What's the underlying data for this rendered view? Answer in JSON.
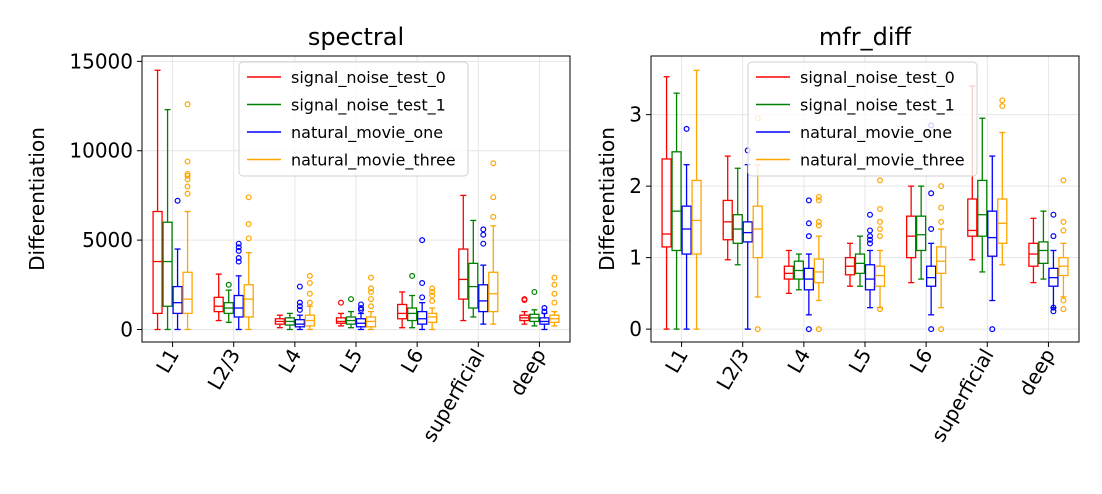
{
  "chart_data": [
    {
      "type": "box",
      "title": "spectral",
      "ylabel": "Differentiation",
      "xlabel": "",
      "ylim": [
        -700,
        15300
      ],
      "yticks": [
        0,
        5000,
        10000,
        15000
      ],
      "ytick_labels": [
        "0",
        "5000",
        "10000",
        "15000"
      ],
      "grid": true,
      "legend_position": "top-center",
      "categories": [
        "L1",
        "L2/3",
        "L4",
        "L5",
        "L6",
        "superficial",
        "deep"
      ],
      "series": [
        {
          "name": "signal_noise_test_0",
          "color": "#ff0000",
          "boxes": [
            {
              "whislo": 0,
              "q1": 900,
              "med": 3800,
              "q3": 6600,
              "whishi": 14500,
              "fliers": []
            },
            {
              "whislo": 500,
              "q1": 1000,
              "med": 1300,
              "q3": 1800,
              "whishi": 3100,
              "fliers": []
            },
            {
              "whislo": 100,
              "q1": 300,
              "med": 450,
              "q3": 600,
              "whishi": 800,
              "fliers": []
            },
            {
              "whislo": 200,
              "q1": 350,
              "med": 450,
              "q3": 650,
              "whishi": 900,
              "fliers": [
                1500
              ]
            },
            {
              "whislo": 100,
              "q1": 600,
              "med": 900,
              "q3": 1400,
              "whishi": 2100,
              "fliers": []
            },
            {
              "whislo": 500,
              "q1": 1700,
              "med": 2800,
              "q3": 4500,
              "whishi": 7500,
              "fliers": []
            },
            {
              "whislo": 300,
              "q1": 500,
              "med": 650,
              "q3": 800,
              "whishi": 1000,
              "fliers": [
                1650,
                1700
              ]
            }
          ]
        },
        {
          "name": "signal_noise_test_1",
          "color": "#008000",
          "boxes": [
            {
              "whislo": 0,
              "q1": 1300,
              "med": 3800,
              "q3": 6000,
              "whishi": 12300,
              "fliers": []
            },
            {
              "whislo": 400,
              "q1": 900,
              "med": 1200,
              "q3": 1500,
              "whishi": 2200,
              "fliers": [
                2500
              ]
            },
            {
              "whislo": 0,
              "q1": 250,
              "med": 450,
              "q3": 650,
              "whishi": 900,
              "fliers": []
            },
            {
              "whislo": 100,
              "q1": 300,
              "med": 500,
              "q3": 700,
              "whishi": 1000,
              "fliers": [
                1700
              ]
            },
            {
              "whislo": 100,
              "q1": 500,
              "med": 900,
              "q3": 1200,
              "whishi": 1900,
              "fliers": [
                3000
              ]
            },
            {
              "whislo": 700,
              "q1": 1200,
              "med": 2400,
              "q3": 3700,
              "whishi": 6100,
              "fliers": []
            },
            {
              "whislo": 200,
              "q1": 450,
              "med": 650,
              "q3": 850,
              "whishi": 1100,
              "fliers": [
                2100
              ]
            }
          ]
        },
        {
          "name": "natural_movie_one",
          "color": "#0000ff",
          "boxes": [
            {
              "whislo": 0,
              "q1": 900,
              "med": 1500,
              "q3": 2400,
              "whishi": 4500,
              "fliers": [
                7200
              ]
            },
            {
              "whislo": 0,
              "q1": 700,
              "med": 1200,
              "q3": 1900,
              "whishi": 3000,
              "fliers": [
                3800,
                4000,
                4400,
                4600,
                4800
              ]
            },
            {
              "whislo": 0,
              "q1": 150,
              "med": 300,
              "q3": 550,
              "whishi": 800,
              "fliers": [
                1100,
                1300,
                1500,
                2400
              ]
            },
            {
              "whislo": 0,
              "q1": 150,
              "med": 350,
              "q3": 600,
              "whishi": 900,
              "fliers": [
                1100,
                1200,
                1400
              ]
            },
            {
              "whislo": 0,
              "q1": 300,
              "med": 600,
              "q3": 1000,
              "whishi": 1500,
              "fliers": [
                1800,
                2600,
                5000
              ]
            },
            {
              "whislo": 300,
              "q1": 1000,
              "med": 1600,
              "q3": 2500,
              "whishi": 3600,
              "fliers": [
                4800,
                5300,
                5600
              ]
            },
            {
              "whislo": 0,
              "q1": 300,
              "med": 450,
              "q3": 650,
              "whishi": 900,
              "fliers": [
                1000,
                1200
              ]
            }
          ]
        },
        {
          "name": "natural_movie_three",
          "color": "#ffa500",
          "boxes": [
            {
              "whislo": 0,
              "q1": 900,
              "med": 1700,
              "q3": 3200,
              "whishi": 6600,
              "fliers": [
                7600,
                8000,
                8400,
                8600,
                8700,
                9400,
                12600
              ]
            },
            {
              "whislo": 0,
              "q1": 700,
              "med": 1700,
              "q3": 2500,
              "whishi": 4300,
              "fliers": [
                5100,
                5900,
                7400
              ]
            },
            {
              "whislo": 0,
              "q1": 200,
              "med": 500,
              "q3": 800,
              "whishi": 1300,
              "fliers": [
                1500,
                2000,
                2600,
                3000
              ]
            },
            {
              "whislo": 0,
              "q1": 150,
              "med": 450,
              "q3": 700,
              "whishi": 1000,
              "fliers": [
                1300,
                1700,
                2100,
                2300,
                2900
              ]
            },
            {
              "whislo": 0,
              "q1": 400,
              "med": 700,
              "q3": 900,
              "whishi": 1200,
              "fliers": [
                1600,
                1900,
                2100,
                2300
              ]
            },
            {
              "whislo": 300,
              "q1": 1000,
              "med": 2000,
              "q3": 3200,
              "whishi": 5800,
              "fliers": [
                6300,
                7400,
                9300
              ]
            },
            {
              "whislo": 200,
              "q1": 400,
              "med": 600,
              "q3": 800,
              "whishi": 1000,
              "fliers": [
                1500,
                2000,
                2500,
                2900
              ]
            }
          ]
        }
      ]
    },
    {
      "type": "box",
      "title": "mfr_diff",
      "ylabel": "Differentiation",
      "xlabel": "",
      "ylim": [
        -0.18,
        3.82
      ],
      "yticks": [
        0,
        1,
        2,
        3
      ],
      "ytick_labels": [
        "0",
        "1",
        "2",
        "3"
      ],
      "grid": true,
      "legend_position": "top-center",
      "categories": [
        "L1",
        "L2/3",
        "L4",
        "L5",
        "L6",
        "superficial",
        "deep"
      ],
      "series": [
        {
          "name": "signal_noise_test_0",
          "color": "#ff0000",
          "boxes": [
            {
              "whislo": 0,
              "q1": 1.15,
              "med": 1.33,
              "q3": 2.38,
              "whishi": 3.53,
              "fliers": []
            },
            {
              "whislo": 0.97,
              "q1": 1.25,
              "med": 1.5,
              "q3": 1.8,
              "whishi": 2.42,
              "fliers": []
            },
            {
              "whislo": 0.5,
              "q1": 0.7,
              "med": 0.78,
              "q3": 0.88,
              "whishi": 1.1,
              "fliers": []
            },
            {
              "whislo": 0.6,
              "q1": 0.76,
              "med": 0.88,
              "q3": 1.0,
              "whishi": 1.2,
              "fliers": []
            },
            {
              "whislo": 0.65,
              "q1": 1.0,
              "med": 1.3,
              "q3": 1.58,
              "whishi": 2.0,
              "fliers": []
            },
            {
              "whislo": 0.97,
              "q1": 1.3,
              "med": 1.38,
              "q3": 1.82,
              "whishi": 3.4,
              "fliers": []
            },
            {
              "whislo": 0.65,
              "q1": 0.88,
              "med": 1.05,
              "q3": 1.2,
              "whishi": 1.55,
              "fliers": []
            }
          ]
        },
        {
          "name": "signal_noise_test_1",
          "color": "#008000",
          "boxes": [
            {
              "whislo": 0,
              "q1": 1.1,
              "med": 1.65,
              "q3": 2.48,
              "whishi": 3.3,
              "fliers": []
            },
            {
              "whislo": 0.9,
              "q1": 1.2,
              "med": 1.4,
              "q3": 1.6,
              "whishi": 2.25,
              "fliers": []
            },
            {
              "whislo": 0.55,
              "q1": 0.7,
              "med": 0.82,
              "q3": 0.95,
              "whishi": 1.05,
              "fliers": []
            },
            {
              "whislo": 0.6,
              "q1": 0.78,
              "med": 0.92,
              "q3": 1.05,
              "whishi": 1.3,
              "fliers": []
            },
            {
              "whislo": 0.7,
              "q1": 1.1,
              "med": 1.32,
              "q3": 1.58,
              "whishi": 2.0,
              "fliers": []
            },
            {
              "whislo": 0.8,
              "q1": 1.3,
              "med": 1.6,
              "q3": 2.08,
              "whishi": 2.95,
              "fliers": []
            },
            {
              "whislo": 0.7,
              "q1": 0.92,
              "med": 1.1,
              "q3": 1.22,
              "whishi": 1.65,
              "fliers": []
            }
          ]
        },
        {
          "name": "natural_movie_one",
          "color": "#0000ff",
          "boxes": [
            {
              "whislo": 0,
              "q1": 1.05,
              "med": 1.4,
              "q3": 1.72,
              "whishi": 2.3,
              "fliers": [
                2.8
              ]
            },
            {
              "whislo": 0,
              "q1": 1.22,
              "med": 1.35,
              "q3": 1.5,
              "whishi": 2.3,
              "fliers": [
                2.5
              ]
            },
            {
              "whislo": 0.2,
              "q1": 0.55,
              "med": 0.7,
              "q3": 0.85,
              "whishi": 1.05,
              "fliers": [
                0,
                1.3,
                1.48,
                1.8
              ]
            },
            {
              "whislo": 0.3,
              "q1": 0.55,
              "med": 0.7,
              "q3": 0.9,
              "whishi": 1.1,
              "fliers": [
                1.2,
                1.25,
                1.3,
                1.38,
                1.6
              ]
            },
            {
              "whislo": 0.2,
              "q1": 0.6,
              "med": 0.72,
              "q3": 0.88,
              "whishi": 1.2,
              "fliers": [
                0,
                1.4,
                1.9,
                2.85
              ]
            },
            {
              "whislo": 0.4,
              "q1": 1.02,
              "med": 1.28,
              "q3": 1.65,
              "whishi": 2.42,
              "fliers": [
                0
              ]
            },
            {
              "whislo": 0.3,
              "q1": 0.6,
              "med": 0.72,
              "q3": 0.85,
              "whishi": 1.1,
              "fliers": [
                0.25,
                0.3,
                1.3,
                1.6
              ]
            }
          ]
        },
        {
          "name": "natural_movie_three",
          "color": "#ffa500",
          "boxes": [
            {
              "whislo": 0,
              "q1": 1.05,
              "med": 1.52,
              "q3": 2.08,
              "whishi": 3.62,
              "fliers": []
            },
            {
              "whislo": 0.45,
              "q1": 1.0,
              "med": 1.4,
              "q3": 1.72,
              "whishi": 2.3,
              "fliers": [
                0,
                2.95
              ]
            },
            {
              "whislo": 0.4,
              "q1": 0.65,
              "med": 0.8,
              "q3": 0.98,
              "whishi": 1.3,
              "fliers": [
                0,
                1.45,
                1.5,
                1.8,
                1.85
              ]
            },
            {
              "whislo": 0.3,
              "q1": 0.6,
              "med": 0.75,
              "q3": 0.88,
              "whishi": 1.1,
              "fliers": [
                0.28,
                1.3,
                1.4,
                1.5,
                1.68,
                2.08
              ]
            },
            {
              "whislo": 0.3,
              "q1": 0.78,
              "med": 0.95,
              "q3": 1.15,
              "whishi": 1.4,
              "fliers": [
                0,
                1.5,
                1.7,
                2.0
              ]
            },
            {
              "whislo": 0.9,
              "q1": 1.2,
              "med": 1.48,
              "q3": 1.82,
              "whishi": 2.75,
              "fliers": [
                3.12,
                3.2
              ]
            },
            {
              "whislo": 0.45,
              "q1": 0.75,
              "med": 0.88,
              "q3": 1.0,
              "whishi": 1.2,
              "fliers": [
                0.28,
                0.4,
                1.38,
                1.5,
                2.08
              ]
            }
          ]
        }
      ]
    }
  ]
}
